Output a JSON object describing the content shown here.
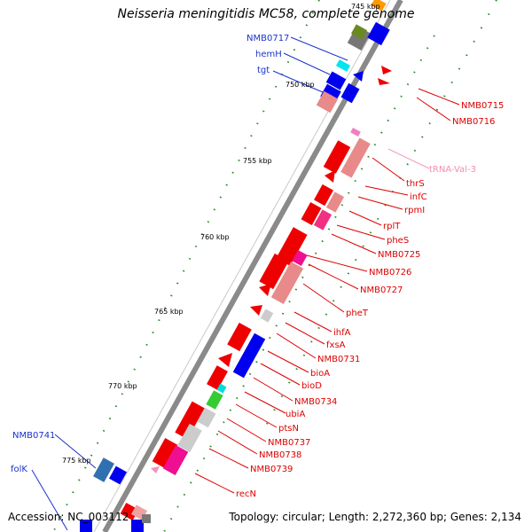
{
  "title": "Neisseria meningitidis MC58, complete genome",
  "footer": {
    "accession": "Accession: NC_003112",
    "info": "Topology: circular; Length: 2,272,360 bp; Genes: 2,134"
  },
  "ticks": [
    "745 kbp",
    "750 kbp",
    "755 kbp",
    "760 kbp",
    "765 kbp",
    "770 kbp",
    "775 kbp"
  ],
  "labels_left": [
    "NMB0717",
    "hemH",
    "tgt",
    "NMB0741",
    "folK"
  ],
  "labels_right": [
    "NMB0715",
    "NMB0716",
    "tRNA-Val-3",
    "thrS",
    "infC",
    "rpmI",
    "rplT",
    "pheS",
    "NMB0725",
    "NMB0726",
    "NMB0727",
    "pheT",
    "ihfA",
    "fxsA",
    "NMB0731",
    "bioA",
    "bioD",
    "NMB0734",
    "ubiA",
    "ptsN",
    "NMB0737",
    "NMB0738",
    "NMB0739",
    "recN"
  ],
  "colors": {
    "forward_left": "#0000ee",
    "reverse_right": "#dd0000",
    "trna": "#f0a0c0",
    "backbone": "#888888",
    "tick": "#007700"
  }
}
